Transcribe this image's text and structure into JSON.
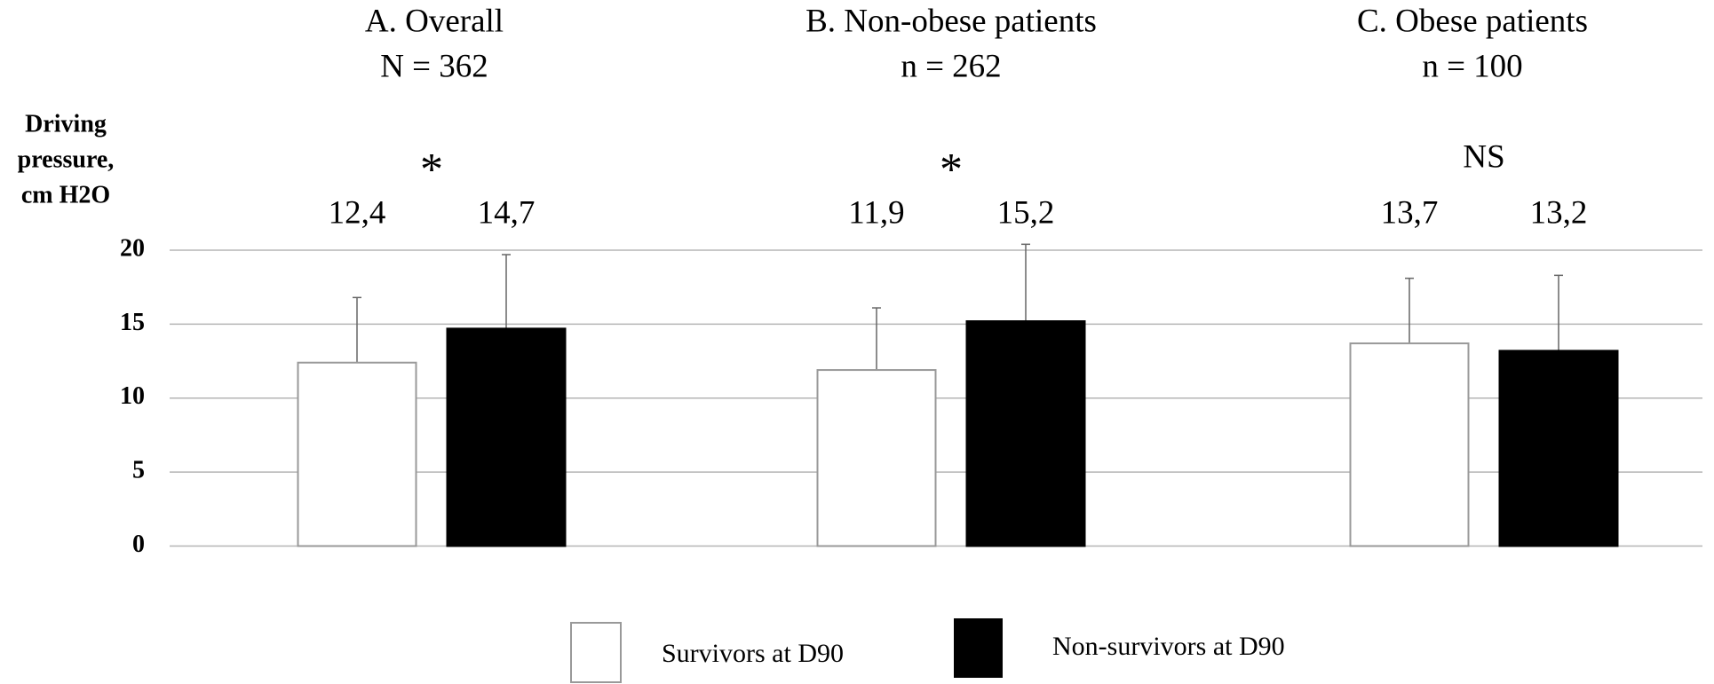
{
  "chart_data": {
    "type": "bar",
    "panels": [
      {
        "title": "A.  Overall",
        "subtitle": "N = 362",
        "annotation": "*"
      },
      {
        "title": "B. Non-obese patients",
        "subtitle": "n = 262",
        "annotation": "*"
      },
      {
        "title": "C. Obese patients",
        "subtitle": "n = 100",
        "annotation": "NS"
      }
    ],
    "ylabel": [
      "Driving",
      "pressure,",
      "cm H2O"
    ],
    "ylim": [
      0,
      20
    ],
    "yticks": [
      0,
      5,
      10,
      15,
      20
    ],
    "grid": true,
    "series": [
      {
        "name": "Survivors  at D90",
        "color": "#ffffff",
        "values": [
          12.4,
          11.9,
          13.7
        ],
        "value_labels": [
          "12,4",
          "11,9",
          "13,7"
        ],
        "errors": [
          4.4,
          4.2,
          4.4
        ]
      },
      {
        "name": "Non-survivors  at D90",
        "color": "#000000",
        "values": [
          14.7,
          15.2,
          13.2
        ],
        "value_labels": [
          "14,7",
          "15,2",
          "13,2"
        ],
        "errors": [
          5.0,
          5.2,
          5.1
        ]
      }
    ]
  }
}
